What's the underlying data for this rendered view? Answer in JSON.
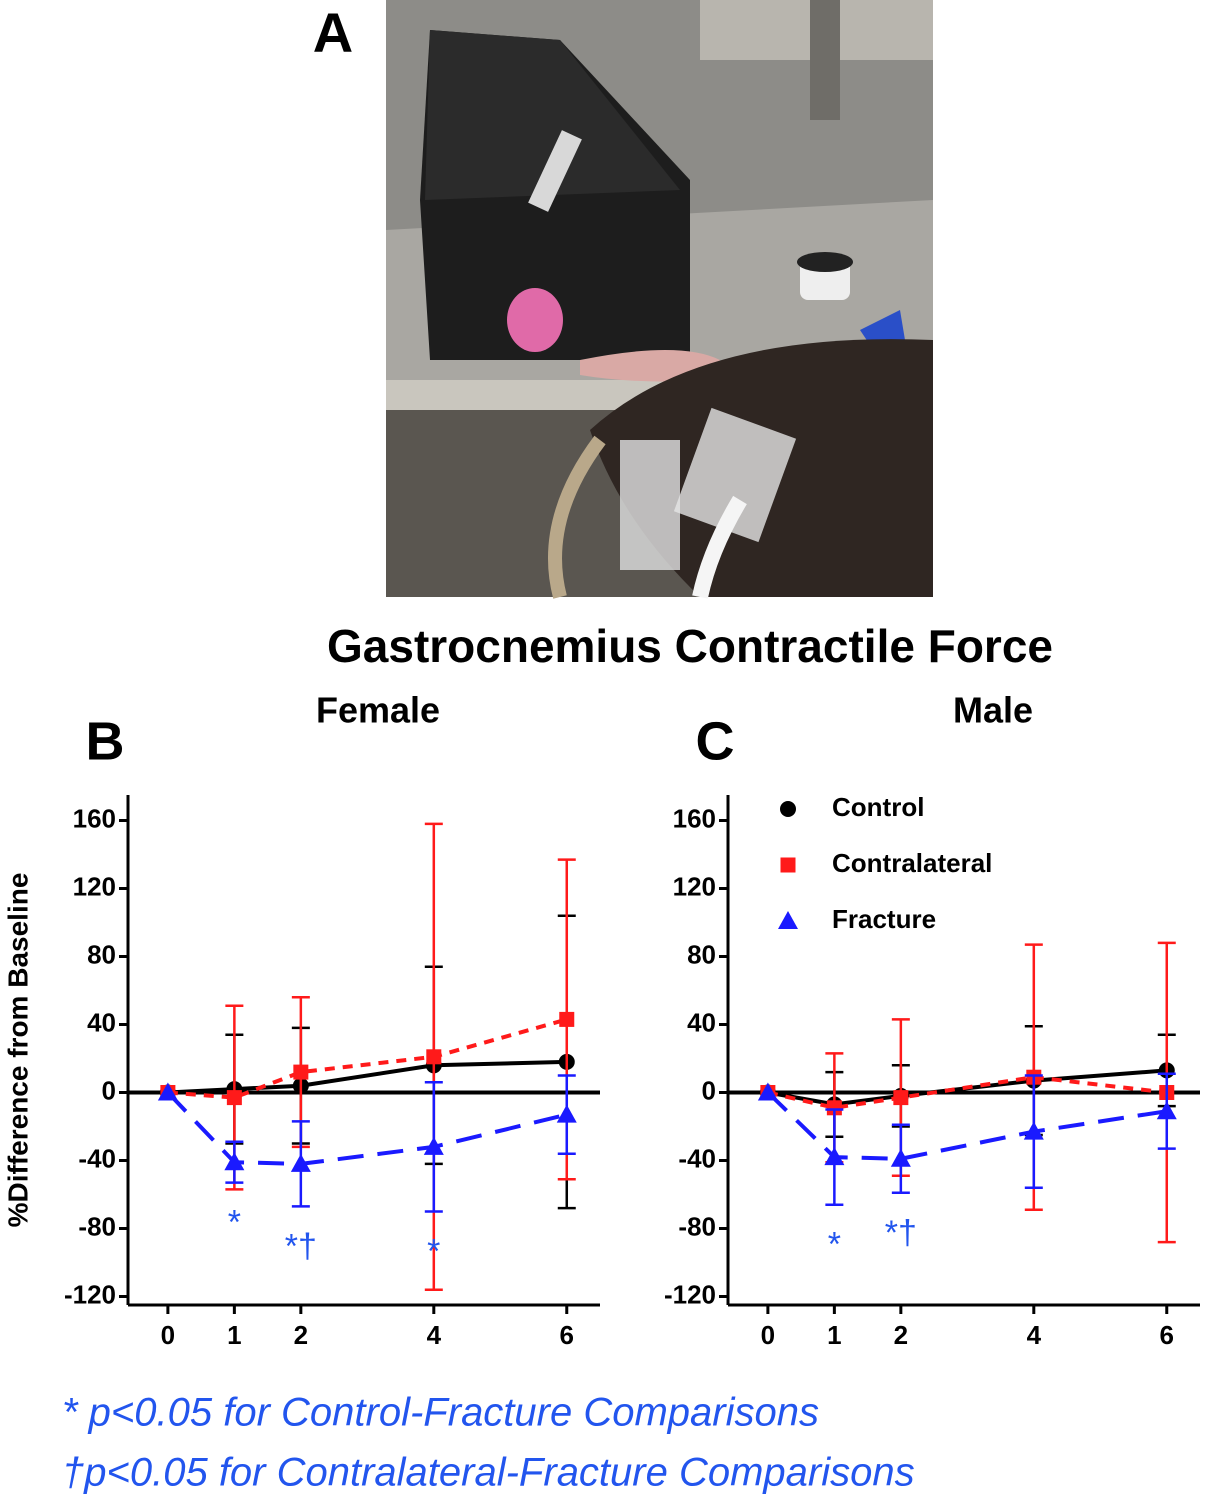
{
  "figure": {
    "panel_label": "A",
    "title": "Gastrocnemius Contractile Force",
    "footnotes": [
      "* p<0.05 for Control-Fracture Comparisons",
      "†p<0.05 for Contralateral-Fracture Comparisons"
    ]
  },
  "chart_data": [
    {
      "type": "line",
      "panel_label": "B",
      "title": "Female",
      "y_label": "%Difference from Baseline",
      "x": [
        0,
        1,
        2,
        4,
        6
      ],
      "xlim": [
        -0.6,
        6.5
      ],
      "xticks": [
        0,
        1,
        2,
        4,
        6
      ],
      "ylim": [
        -125,
        175
      ],
      "yticks": [
        -120,
        -80,
        -40,
        0,
        40,
        80,
        120,
        160
      ],
      "zero_line": true,
      "legend": false,
      "series": [
        {
          "color": "#000000",
          "marker": "circle",
          "dash": "solid",
          "values": [
            0,
            2,
            4,
            16,
            18
          ],
          "errors": [
            0,
            32,
            34,
            58,
            86
          ]
        },
        {
          "color": "#ff1a1a",
          "marker": "square",
          "dash": "dotted",
          "values": [
            0,
            -3,
            12,
            21,
            43
          ],
          "errors": [
            0,
            54,
            44,
            137,
            94
          ]
        },
        {
          "color": "#1a1aff",
          "marker": "triangle",
          "dash": "dashed",
          "values": [
            0,
            -41,
            -42,
            -32,
            -13
          ],
          "errors": [
            0,
            12,
            25,
            38,
            23
          ]
        }
      ],
      "annotations": [
        {
          "text": "*",
          "x": 1,
          "color": "#2255ee"
        },
        {
          "text": "*†",
          "x": 2,
          "color": "#2255ee"
        },
        {
          "text": "*",
          "x": 4,
          "color": "#2255ee"
        }
      ]
    },
    {
      "type": "line",
      "panel_label": "C",
      "title": "Male",
      "x": [
        0,
        1,
        2,
        4,
        6
      ],
      "xlim": [
        -0.6,
        6.5
      ],
      "xticks": [
        0,
        1,
        2,
        4,
        6
      ],
      "ylim": [
        -125,
        175
      ],
      "yticks": [
        -120,
        -80,
        -40,
        0,
        40,
        80,
        120,
        160
      ],
      "zero_line": true,
      "legend": "upper left",
      "series": [
        {
          "name": "Control",
          "color": "#000000",
          "marker": "circle",
          "dash": "solid",
          "values": [
            0,
            -7,
            -2,
            7,
            13
          ],
          "errors": [
            0,
            19,
            18,
            32,
            21
          ]
        },
        {
          "name": "Contralateral",
          "color": "#ff1a1a",
          "marker": "square",
          "dash": "dotted",
          "values": [
            0,
            -9,
            -3,
            9,
            0
          ],
          "errors": [
            0,
            32,
            46,
            78,
            88
          ]
        },
        {
          "name": "Fracture",
          "color": "#1a1aff",
          "marker": "triangle",
          "dash": "dashed",
          "values": [
            0,
            -38,
            -39,
            -23,
            -11
          ],
          "errors": [
            0,
            28,
            20,
            33,
            22
          ]
        }
      ],
      "annotations": [
        {
          "text": "*",
          "x": 1,
          "color": "#2255ee"
        },
        {
          "text": "*†",
          "x": 2,
          "color": "#2255ee"
        }
      ]
    }
  ]
}
